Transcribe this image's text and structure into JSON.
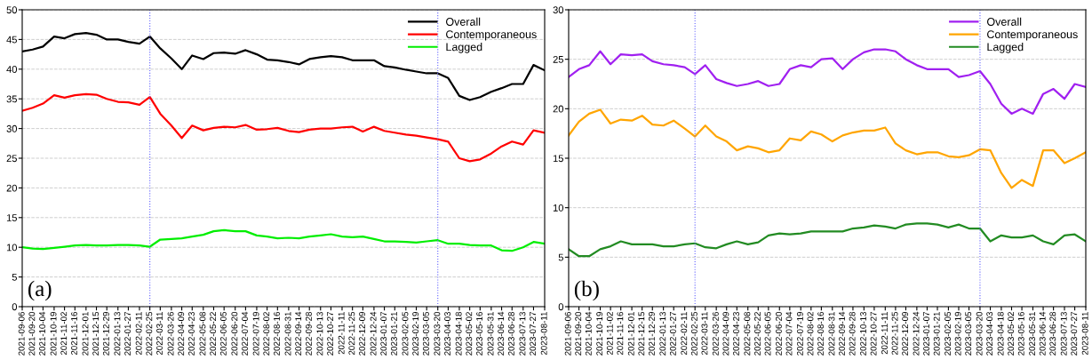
{
  "chart_data": [
    {
      "type": "line",
      "annotations": [
        "(a)"
      ],
      "x": [
        "2021-09-06",
        "2021-09-20",
        "2021-10-04",
        "2021-10-19",
        "2021-11-02",
        "2021-11-16",
        "2021-12-01",
        "2021-12-15",
        "2021-12-29",
        "2022-01-13",
        "2022-01-27",
        "2022-02-11",
        "2022-02-25",
        "2022-03-11",
        "2022-03-26",
        "2022-04-09",
        "2022-04-23",
        "2022-05-08",
        "2022-05-22",
        "2022-06-05",
        "2022-06-20",
        "2022-07-04",
        "2022-07-19",
        "2022-08-02",
        "2022-08-16",
        "2022-08-31",
        "2022-09-14",
        "2022-09-28",
        "2022-10-13",
        "2022-10-27",
        "2022-11-11",
        "2022-11-25",
        "2022-12-09",
        "2022-12-24",
        "2023-01-07",
        "2023-01-21",
        "2023-02-05",
        "2023-02-19",
        "2023-03-05",
        "2023-03-20",
        "2023-04-03",
        "2023-04-18",
        "2023-05-02",
        "2023-05-16",
        "2023-05-31",
        "2023-06-14",
        "2023-06-28",
        "2023-07-13",
        "2023-07-27",
        "2023-08-11"
      ],
      "series": [
        {
          "name": "Overall",
          "color": "#000000",
          "values": [
            43.0,
            43.3,
            43.8,
            45.5,
            45.2,
            45.9,
            46.1,
            45.8,
            45.0,
            45.0,
            44.6,
            44.3,
            45.5,
            43.5,
            41.8,
            40.0,
            42.3,
            41.7,
            42.7,
            42.8,
            42.6,
            43.2,
            42.5,
            41.6,
            41.5,
            41.2,
            40.8,
            41.7,
            42.0,
            42.2,
            42.0,
            41.5,
            41.5,
            41.5,
            40.5,
            40.3,
            39.9,
            39.6,
            39.3,
            39.3,
            38.5,
            35.5,
            34.8,
            35.3,
            36.2,
            36.8,
            37.5,
            37.5,
            40.7,
            39.8
          ]
        },
        {
          "name": "Contemporaneous",
          "color": "#ff0000",
          "values": [
            33.0,
            33.5,
            34.2,
            35.6,
            35.2,
            35.6,
            35.8,
            35.7,
            35.0,
            34.5,
            34.4,
            34.0,
            35.3,
            32.5,
            30.5,
            28.4,
            30.5,
            29.7,
            30.1,
            30.3,
            30.2,
            30.6,
            29.8,
            29.9,
            30.1,
            29.6,
            29.4,
            29.8,
            30.0,
            30.0,
            30.2,
            30.3,
            29.5,
            30.3,
            29.6,
            29.3,
            29.0,
            28.8,
            28.5,
            28.2,
            27.8,
            25.0,
            24.5,
            24.8,
            25.8,
            27.0,
            27.8,
            27.3,
            29.7,
            29.3
          ]
        },
        {
          "name": "Lagged",
          "color": "#00ee00",
          "values": [
            10.0,
            9.8,
            9.7,
            9.9,
            10.1,
            10.3,
            10.4,
            10.3,
            10.3,
            10.4,
            10.4,
            10.3,
            10.1,
            11.3,
            11.4,
            11.5,
            11.8,
            12.1,
            12.7,
            12.9,
            12.7,
            12.7,
            12.0,
            11.8,
            11.5,
            11.6,
            11.5,
            11.8,
            12.0,
            12.2,
            11.8,
            11.7,
            11.8,
            11.4,
            11.0,
            11.0,
            10.9,
            10.8,
            11.0,
            11.2,
            10.6,
            10.6,
            10.4,
            10.3,
            10.3,
            9.5,
            9.4,
            10.0,
            10.9,
            10.6
          ]
        }
      ],
      "xlim": [
        "2021-09-06",
        "2023-08-11"
      ],
      "xticks": [
        "2021-09-06",
        "2021-09-20",
        "2021-10-04",
        "2021-10-19",
        "2021-11-02",
        "2021-11-16",
        "2021-12-01",
        "2021-12-15",
        "2021-12-29",
        "2022-01-13",
        "2022-01-27",
        "2022-02-11",
        "2022-02-25",
        "2022-03-11",
        "2022-03-26",
        "2022-04-09",
        "2022-04-23",
        "2022-05-08",
        "2022-05-22",
        "2022-06-05",
        "2022-06-20",
        "2022-07-04",
        "2022-07-19",
        "2022-08-02",
        "2022-08-16",
        "2022-08-31",
        "2022-09-14",
        "2022-09-28",
        "2022-10-13",
        "2022-10-27",
        "2022-11-11",
        "2022-11-25",
        "2022-12-09",
        "2022-12-24",
        "2023-01-07",
        "2023-01-21",
        "2023-02-05",
        "2023-02-19",
        "2023-03-05",
        "2023-03-20",
        "2023-04-03",
        "2023-04-18",
        "2023-05-02",
        "2023-05-16",
        "2023-05-31",
        "2023-06-14",
        "2023-06-28",
        "2023-07-13",
        "2023-07-27",
        "2023-08-11"
      ],
      "ylim": [
        0,
        50
      ],
      "yticks": [
        0,
        5,
        10,
        15,
        20,
        25,
        30,
        35,
        40,
        45,
        50
      ],
      "ref_lines": [
        {
          "axis": "x",
          "value": "2022-02-25",
          "color": "#6666ff",
          "line_style": "dotted"
        },
        {
          "axis": "x",
          "value": "2023-03-20",
          "color": "#6666ff",
          "line_style": "dotted"
        }
      ],
      "grid": "y",
      "legend": "top right",
      "marker": "none",
      "line_style": "solid"
    },
    {
      "type": "line",
      "annotations": [
        "(b)"
      ],
      "x": [
        "2021-09-06",
        "2021-09-20",
        "2021-10-04",
        "2021-10-19",
        "2021-11-02",
        "2021-11-16",
        "2021-12-01",
        "2021-12-15",
        "2021-12-29",
        "2022-01-13",
        "2022-01-27",
        "2022-02-11",
        "2022-02-25",
        "2022-03-11",
        "2022-03-26",
        "2022-04-09",
        "2022-04-23",
        "2022-05-08",
        "2022-05-22",
        "2022-06-05",
        "2022-06-20",
        "2022-07-04",
        "2022-07-19",
        "2022-08-02",
        "2022-08-16",
        "2022-08-31",
        "2022-09-14",
        "2022-09-28",
        "2022-10-13",
        "2022-10-27",
        "2022-11-11",
        "2022-11-25",
        "2022-12-09",
        "2022-12-24",
        "2023-01-07",
        "2023-01-21",
        "2023-02-05",
        "2023-02-19",
        "2023-03-05",
        "2023-03-20",
        "2023-04-03",
        "2023-04-18",
        "2023-05-02",
        "2023-05-16",
        "2023-05-31",
        "2023-06-14",
        "2023-06-28",
        "2023-07-13",
        "2023-07-27",
        "2023-08-11"
      ],
      "series": [
        {
          "name": "Overall",
          "color": "#a020f0",
          "values": [
            23.2,
            24.0,
            24.4,
            25.8,
            24.5,
            25.5,
            25.4,
            25.5,
            24.8,
            24.5,
            24.4,
            24.2,
            23.5,
            24.4,
            23.0,
            22.6,
            22.3,
            22.5,
            22.8,
            22.3,
            22.5,
            24.0,
            24.4,
            24.2,
            25.0,
            25.1,
            24.0,
            25.0,
            25.7,
            26.0,
            26.0,
            25.8,
            25.0,
            24.4,
            24.0,
            24.0,
            24.0,
            23.2,
            23.4,
            23.8,
            22.5,
            20.5,
            19.5,
            20.0,
            19.5,
            21.5,
            22.0,
            21.0,
            22.5,
            22.2
          ]
        },
        {
          "name": "Contemporaneous",
          "color": "#ffa500",
          "values": [
            17.3,
            18.7,
            19.5,
            19.9,
            18.5,
            18.9,
            18.8,
            19.3,
            18.4,
            18.3,
            18.8,
            18.0,
            17.2,
            18.3,
            17.2,
            16.7,
            15.8,
            16.2,
            16.0,
            15.6,
            15.8,
            17.0,
            16.8,
            17.7,
            17.4,
            16.7,
            17.3,
            17.6,
            17.8,
            17.8,
            18.1,
            16.5,
            15.8,
            15.4,
            15.6,
            15.6,
            15.2,
            15.1,
            15.3,
            15.9,
            15.8,
            13.5,
            12.0,
            12.8,
            12.2,
            15.8,
            15.8,
            14.5,
            15.0,
            15.6
          ]
        },
        {
          "name": "Lagged",
          "color": "#228b22",
          "values": [
            5.8,
            5.1,
            5.1,
            5.8,
            6.1,
            6.6,
            6.3,
            6.3,
            6.3,
            6.1,
            6.1,
            6.3,
            6.4,
            6.0,
            5.9,
            6.3,
            6.6,
            6.3,
            6.5,
            7.2,
            7.4,
            7.3,
            7.4,
            7.6,
            7.6,
            7.6,
            7.6,
            7.9,
            8.0,
            8.2,
            8.1,
            7.9,
            8.3,
            8.4,
            8.4,
            8.3,
            8.0,
            8.3,
            7.9,
            7.9,
            6.6,
            7.2,
            7.0,
            7.0,
            7.2,
            6.6,
            6.3,
            7.2,
            7.3,
            6.6
          ]
        }
      ],
      "xlim": [
        "2021-09-06",
        "2023-08-11"
      ],
      "xticks": [
        "2021-09-06",
        "2021-09-20",
        "2021-10-04",
        "2021-10-19",
        "2021-11-02",
        "2021-11-16",
        "2021-12-01",
        "2021-12-15",
        "2021-12-29",
        "2022-01-13",
        "2022-01-27",
        "2022-02-11",
        "2022-02-25",
        "2022-03-11",
        "2022-03-26",
        "2022-04-09",
        "2022-04-23",
        "2022-05-08",
        "2022-05-22",
        "2022-06-05",
        "2022-06-20",
        "2022-07-04",
        "2022-07-19",
        "2022-08-02",
        "2022-08-16",
        "2022-08-31",
        "2022-09-14",
        "2022-09-28",
        "2022-10-13",
        "2022-10-27",
        "2022-11-11",
        "2022-11-25",
        "2022-12-09",
        "2022-12-24",
        "2023-01-07",
        "2023-01-21",
        "2023-02-05",
        "2023-02-19",
        "2023-03-05",
        "2023-03-20",
        "2023-04-03",
        "2023-04-18",
        "2023-05-02",
        "2023-05-16",
        "2023-05-31",
        "2023-06-14",
        "2023-06-28",
        "2023-07-13",
        "2023-07-27",
        "2023-08-11"
      ],
      "ylim": [
        0,
        30
      ],
      "yticks": [
        0,
        5,
        10,
        15,
        20,
        25,
        30
      ],
      "ref_lines": [
        {
          "axis": "x",
          "value": "2022-02-25",
          "color": "#6666ff",
          "line_style": "dotted"
        },
        {
          "axis": "x",
          "value": "2023-03-20",
          "color": "#6666ff",
          "line_style": "dotted"
        }
      ],
      "grid": "y",
      "legend": "top right",
      "marker": "none",
      "line_style": "solid"
    }
  ]
}
